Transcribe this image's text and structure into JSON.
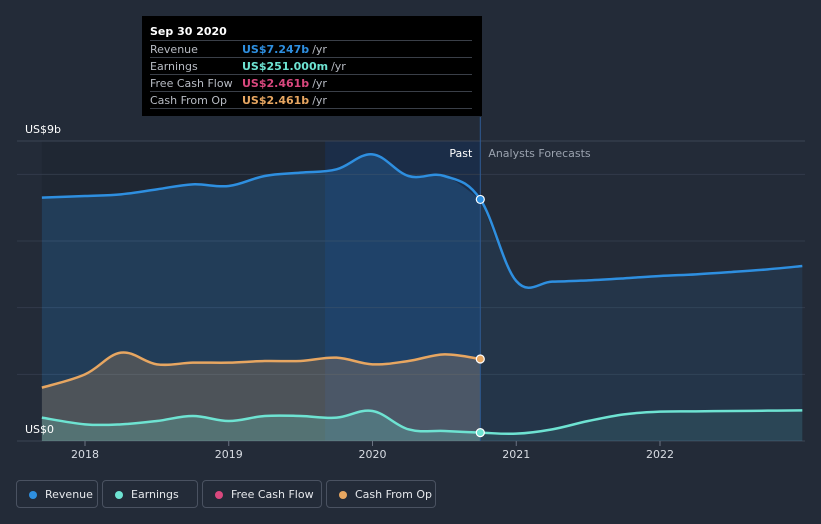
{
  "tooltip": {
    "date": "Sep 30 2020",
    "rows": [
      {
        "label": "Revenue",
        "value": "US$7.247b",
        "unit": "/yr",
        "color": "#2e8fe0"
      },
      {
        "label": "Earnings",
        "value": "US$251.000m",
        "unit": "/yr",
        "color": "#6ee3d2"
      },
      {
        "label": "Free Cash Flow",
        "value": "US$2.461b",
        "unit": "/yr",
        "color": "#d9487e"
      },
      {
        "label": "Cash From Op",
        "value": "US$2.461b",
        "unit": "/yr",
        "color": "#e7a661"
      }
    ]
  },
  "legend": [
    {
      "label": "Revenue",
      "color": "#2e8fe0"
    },
    {
      "label": "Earnings",
      "color": "#6ee3d2"
    },
    {
      "label": "Free Cash Flow",
      "color": "#d9487e"
    },
    {
      "label": "Cash From Op",
      "color": "#e7a661"
    }
  ],
  "chart_data": {
    "type": "area",
    "title": "",
    "xlabel": "",
    "ylabel": "",
    "y_axis_labels": {
      "top": "US$9b",
      "bottom": "US$0"
    },
    "ylim": [
      0,
      9
    ],
    "xlim": [
      2017.7,
      2022.99
    ],
    "x_ticks": [
      2018,
      2019,
      2020,
      2021,
      2022
    ],
    "x_tick_labels": [
      "2018",
      "2019",
      "2020",
      "2021",
      "2022"
    ],
    "past_label": "Past",
    "forecast_label": "Analysts Forecasts",
    "divider_x": 2020.75,
    "highlight_x": [
      2019.67,
      2020.75
    ],
    "grid": true,
    "series": [
      {
        "name": "Revenue",
        "color": "#2e8fe0",
        "fill": true,
        "x": [
          2017.7,
          2018.0,
          2018.25,
          2018.5,
          2018.75,
          2019.0,
          2019.25,
          2019.5,
          2019.75,
          2020.0,
          2020.25,
          2020.5,
          2020.75,
          2021.0,
          2021.25,
          2021.5,
          2021.75,
          2022.0,
          2022.25,
          2022.5,
          2022.75,
          2022.99
        ],
        "values": [
          7.3,
          7.35,
          7.4,
          7.55,
          7.7,
          7.65,
          7.95,
          8.05,
          8.15,
          8.6,
          7.95,
          7.95,
          7.25,
          4.8,
          4.78,
          4.82,
          4.88,
          4.95,
          5.0,
          5.07,
          5.15,
          5.25
        ]
      },
      {
        "name": "Cash From Op",
        "color": "#e7a661",
        "fill": true,
        "x": [
          2017.7,
          2018.0,
          2018.25,
          2018.5,
          2018.75,
          2019.0,
          2019.25,
          2019.5,
          2019.75,
          2020.0,
          2020.25,
          2020.5,
          2020.75
        ],
        "values": [
          1.6,
          2.0,
          2.65,
          2.3,
          2.35,
          2.35,
          2.4,
          2.4,
          2.5,
          2.3,
          2.4,
          2.6,
          2.461
        ]
      },
      {
        "name": "Free Cash Flow",
        "color": "#d9487e",
        "fill": false,
        "x": [
          2020.75
        ],
        "values": [
          2.461
        ]
      },
      {
        "name": "Earnings",
        "color": "#6ee3d2",
        "fill": true,
        "x": [
          2017.7,
          2018.0,
          2018.25,
          2018.5,
          2018.75,
          2019.0,
          2019.25,
          2019.5,
          2019.75,
          2020.0,
          2020.25,
          2020.5,
          2020.75,
          2021.0,
          2021.25,
          2021.5,
          2021.75,
          2022.0,
          2022.25,
          2022.5,
          2022.75,
          2022.99
        ],
        "values": [
          0.7,
          0.5,
          0.5,
          0.6,
          0.75,
          0.6,
          0.75,
          0.75,
          0.7,
          0.9,
          0.35,
          0.3,
          0.251,
          0.22,
          0.35,
          0.6,
          0.8,
          0.88,
          0.89,
          0.9,
          0.91,
          0.92
        ]
      }
    ],
    "markers": [
      {
        "series": "Revenue",
        "x": 2020.75,
        "value": 7.247
      },
      {
        "series": "Cash From Op",
        "x": 2020.75,
        "value": 2.461
      },
      {
        "series": "Earnings",
        "x": 2020.75,
        "value": 0.251
      }
    ]
  }
}
